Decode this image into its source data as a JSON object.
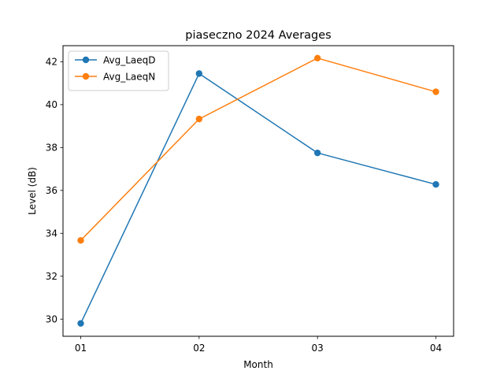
{
  "chart_data": {
    "type": "line",
    "title": "piaseczno 2024 Averages",
    "xlabel": "Month",
    "ylabel": "Level (dB)",
    "categories": [
      "01",
      "02",
      "03",
      "04"
    ],
    "ylim": [
      29.2,
      42.75
    ],
    "yticks": [
      30,
      32,
      34,
      36,
      38,
      40,
      42
    ],
    "grid": false,
    "legend_position": "top-left",
    "series": [
      {
        "name": "Avg_LaeqD",
        "color": "#1f77b4",
        "values": [
          29.8,
          41.45,
          37.75,
          36.28
        ]
      },
      {
        "name": "Avg_LaeqN",
        "color": "#ff7f0e",
        "values": [
          33.67,
          39.33,
          42.17,
          40.6
        ]
      }
    ]
  }
}
